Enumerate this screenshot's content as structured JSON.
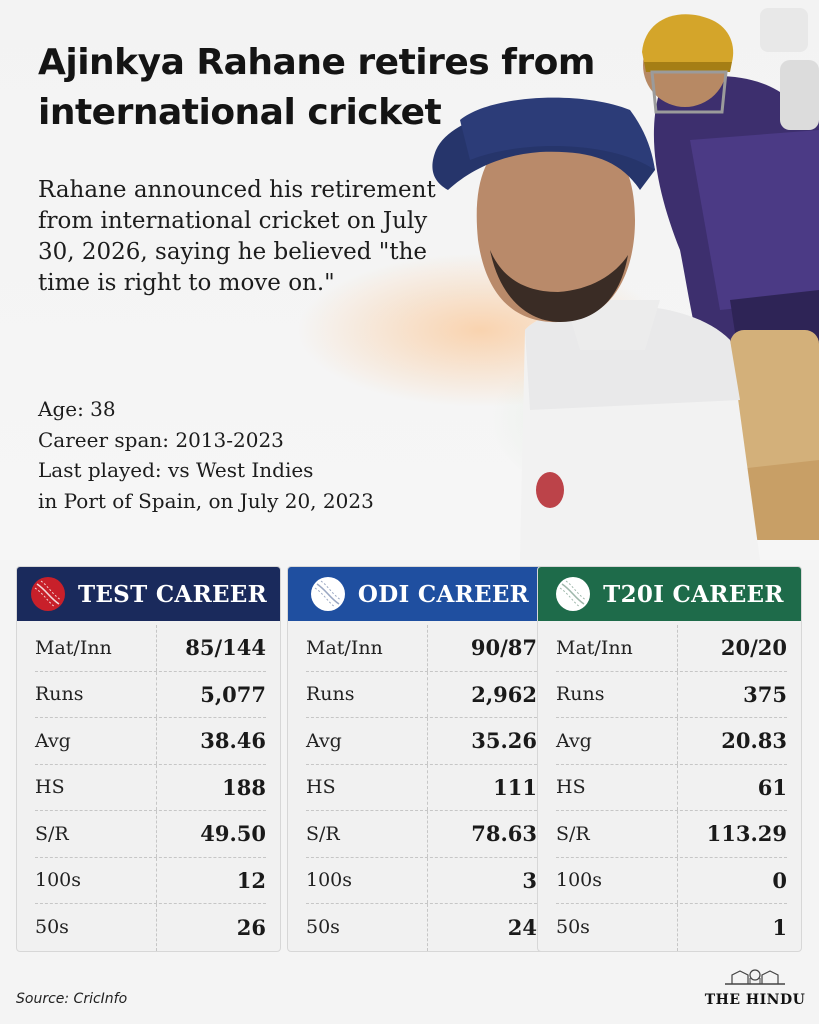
{
  "headline": "Ajinkya Rahane retires from international cricket",
  "lede": "Rahane announced his retirement from international cricket on July 30, 2026, saying he believed \"the time is right to move on.\"",
  "facts": {
    "age": "Age: 38",
    "span": "Career span: 2013-2023",
    "last_played_1": "Last played: vs West Indies",
    "last_played_2": "in Port of Spain, on July 20, 2023"
  },
  "cards": [
    {
      "title": "TEST CAREER",
      "color": "#1a2a5c",
      "ball_color": "#c8202a",
      "rows": [
        {
          "label": "Mat/Inn",
          "value": "85/144"
        },
        {
          "label": "Runs",
          "value": "5,077"
        },
        {
          "label": "Avg",
          "value": "38.46"
        },
        {
          "label": "HS",
          "value": "188"
        },
        {
          "label": "S/R",
          "value": "49.50"
        },
        {
          "label": "100s",
          "value": "12"
        },
        {
          "label": "50s",
          "value": "26"
        }
      ]
    },
    {
      "title": "ODI CAREER",
      "color": "#1f4fa0",
      "ball_color": "#ffffff",
      "rows": [
        {
          "label": "Mat/Inn",
          "value": "90/87"
        },
        {
          "label": "Runs",
          "value": "2,962"
        },
        {
          "label": "Avg",
          "value": "35.26"
        },
        {
          "label": "HS",
          "value": "111"
        },
        {
          "label": "S/R",
          "value": "78.63"
        },
        {
          "label": "100s",
          "value": "3"
        },
        {
          "label": "50s",
          "value": "24"
        }
      ]
    },
    {
      "title": "T20I CAREER",
      "color": "#1e6b4a",
      "ball_color": "#ffffff",
      "rows": [
        {
          "label": "Mat/Inn",
          "value": "20/20"
        },
        {
          "label": "Runs",
          "value": "375"
        },
        {
          "label": "Avg",
          "value": "20.83"
        },
        {
          "label": "HS",
          "value": "61"
        },
        {
          "label": "S/R",
          "value": "113.29"
        },
        {
          "label": "100s",
          "value": "0"
        },
        {
          "label": "50s",
          "value": "1"
        }
      ]
    }
  ],
  "source": "Source: CricInfo",
  "masthead": "THE HINDU",
  "icons": [
    "cricket-ball-icon",
    "newspaper-logo"
  ]
}
